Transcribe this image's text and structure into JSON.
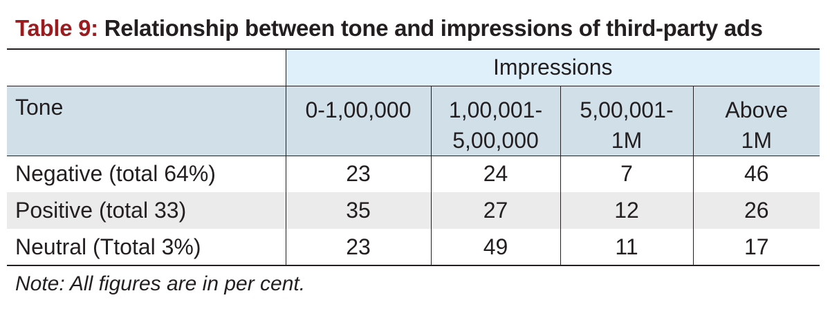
{
  "title": {
    "tag": "Table 9:",
    "text": "Relationship between tone and impressions of third-party ads"
  },
  "table": {
    "group_header": "Impressions",
    "row_header": "Tone",
    "columns": [
      {
        "line1": "0-1,00,000",
        "line2": ""
      },
      {
        "line1": "1,00,001-",
        "line2": "5,00,000"
      },
      {
        "line1": "5,00,001-",
        "line2": "1M"
      },
      {
        "line1": "Above",
        "line2": "1M"
      }
    ],
    "rows": [
      {
        "label": "Negative (total 64%)",
        "values": [
          "23",
          "24",
          "7",
          "46"
        ]
      },
      {
        "label": "Positive (total 33)",
        "values": [
          "35",
          "27",
          "12",
          "26"
        ]
      },
      {
        "label": "Neutral (Ttotal 3%)",
        "values": [
          "23",
          "49",
          "11",
          "17"
        ]
      }
    ]
  },
  "note": "Note: All figures are in per cent.",
  "colors": {
    "title_tag": "#9b1b1e",
    "header_light_blue": "#dff0fa",
    "header_blue": "#d0dfe8",
    "row_shade": "#ebebeb"
  }
}
